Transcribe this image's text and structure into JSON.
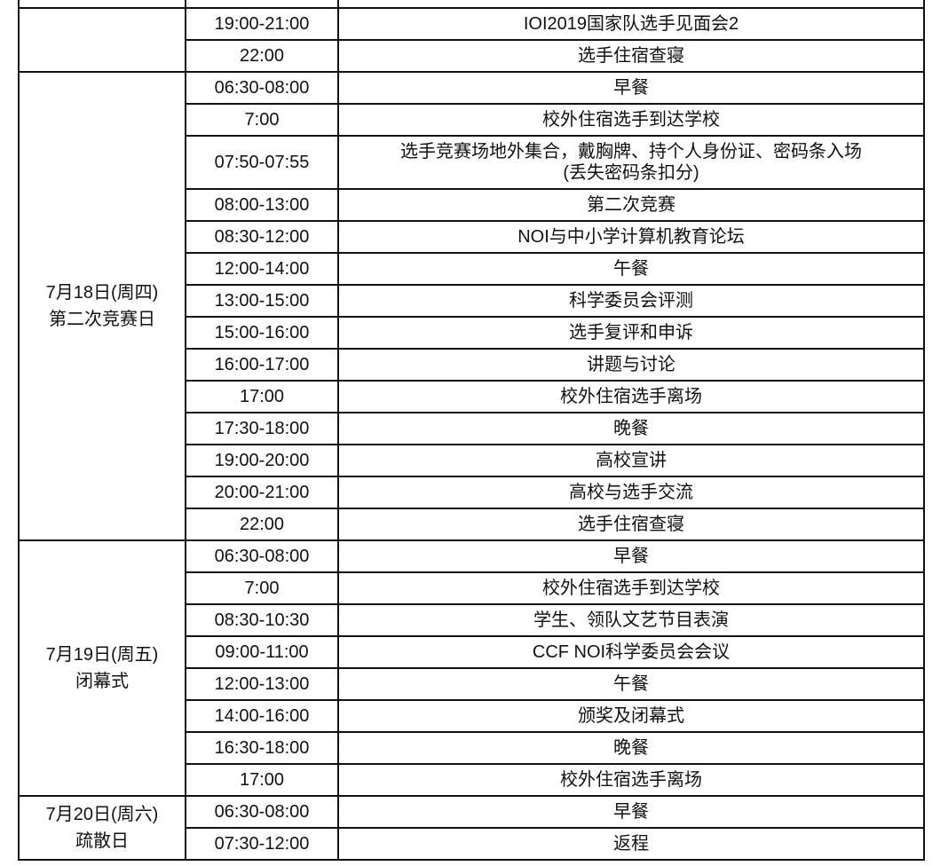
{
  "schedule": {
    "groups": [
      {
        "date": "",
        "subtitle": "",
        "rows": [
          {
            "time": "19:00-21:00",
            "event": "IOI2019国家队选手见面会2"
          },
          {
            "time": "22:00",
            "event": "选手住宿查寝"
          }
        ]
      },
      {
        "date": "7月18日(周四)",
        "subtitle": "第二次竞赛日",
        "rows": [
          {
            "time": "06:30-08:00",
            "event": "早餐"
          },
          {
            "time": "7:00",
            "event": "校外住宿选手到达学校"
          },
          {
            "time": "07:50-07:55",
            "event": "选手竞赛场地外集合，戴胸牌、持个人身份证、密码条入场\n(丢失密码条扣分)"
          },
          {
            "time": "08:00-13:00",
            "event": "第二次竞赛"
          },
          {
            "time": "08:30-12:00",
            "event": "NOI与中小学计算机教育论坛"
          },
          {
            "time": "12:00-14:00",
            "event": "午餐"
          },
          {
            "time": "13:00-15:00",
            "event": "科学委员会评测"
          },
          {
            "time": "15:00-16:00",
            "event": "选手复评和申诉"
          },
          {
            "time": "16:00-17:00",
            "event": "讲题与讨论"
          },
          {
            "time": "17:00",
            "event": "校外住宿选手离场"
          },
          {
            "time": "17:30-18:00",
            "event": "晚餐"
          },
          {
            "time": "19:00-20:00",
            "event": "高校宣讲"
          },
          {
            "time": "20:00-21:00",
            "event": "高校与选手交流"
          },
          {
            "time": "22:00",
            "event": "选手住宿查寝"
          }
        ]
      },
      {
        "date": "7月19日(周五)",
        "subtitle": "闭幕式",
        "rows": [
          {
            "time": "06:30-08:00",
            "event": "早餐"
          },
          {
            "time": "7:00",
            "event": "校外住宿选手到达学校"
          },
          {
            "time": "08:30-10:30",
            "event": "学生、领队文艺节目表演"
          },
          {
            "time": "09:00-11:00",
            "event": "CCF NOI科学委员会会议"
          },
          {
            "time": "12:00-13:00",
            "event": "午餐"
          },
          {
            "time": "14:00-16:00",
            "event": "颁奖及闭幕式"
          },
          {
            "time": "16:30-18:00",
            "event": "晚餐"
          },
          {
            "time": "17:00",
            "event": "校外住宿选手离场"
          }
        ]
      },
      {
        "date": "7月20日(周六)",
        "subtitle": "疏散日",
        "rows": [
          {
            "time": "06:30-08:00",
            "event": "早餐"
          },
          {
            "time": "07:30-12:00",
            "event": "返程"
          }
        ]
      }
    ]
  }
}
